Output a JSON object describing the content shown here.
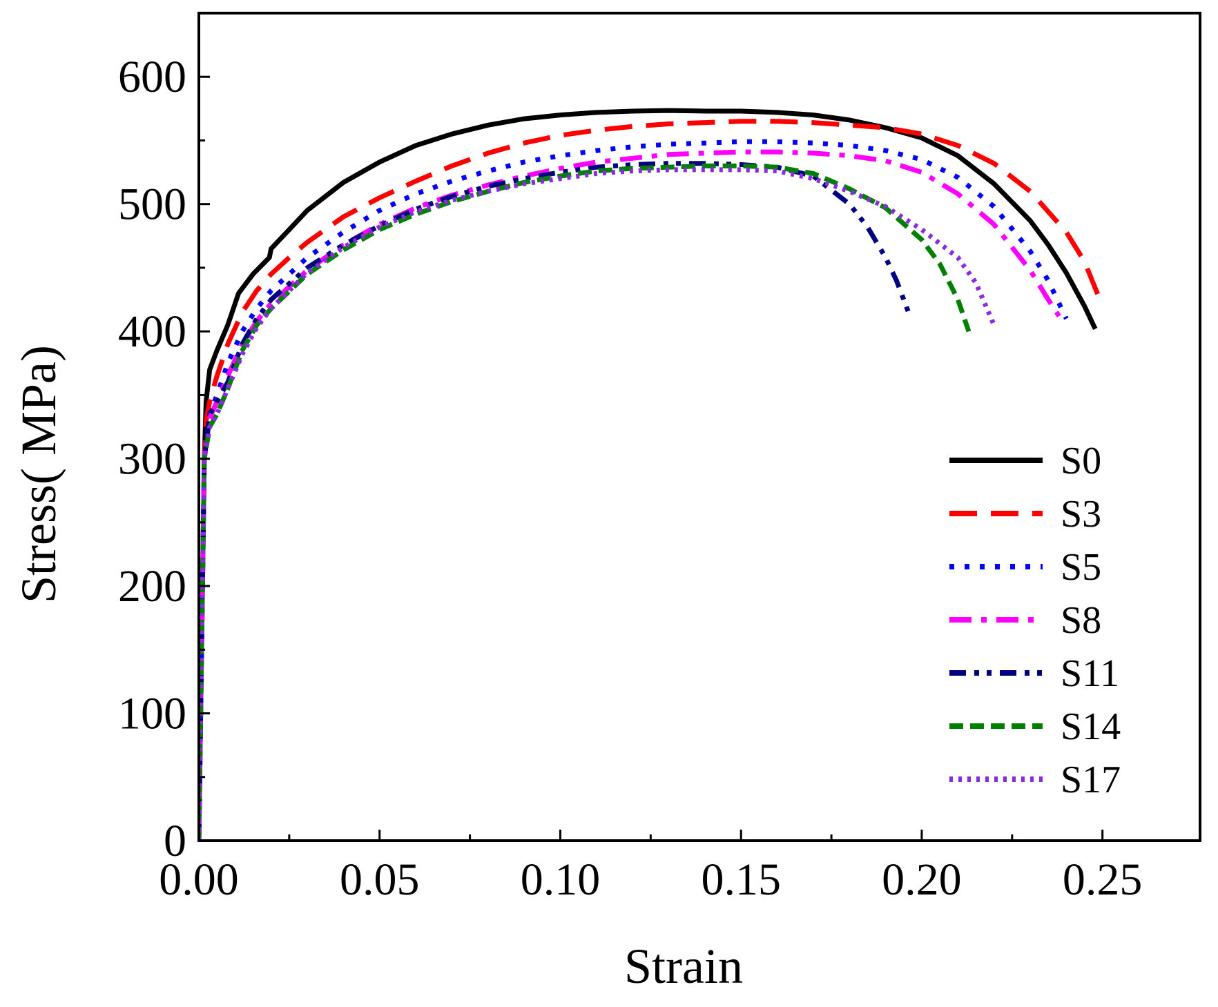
{
  "chart_data": {
    "type": "line",
    "title": "",
    "xlabel": "Strain",
    "ylabel": "Stress( MPa)",
    "xlim": [
      0,
      0.277
    ],
    "ylim": [
      0,
      650
    ],
    "xticks": [
      0.0,
      0.05,
      0.1,
      0.15,
      0.2,
      0.25
    ],
    "xtick_labels": [
      "0.00",
      "0.05",
      "0.10",
      "0.15",
      "0.20",
      "0.25"
    ],
    "yticks": [
      0,
      100,
      200,
      300,
      400,
      500,
      600
    ],
    "ytick_labels": [
      "0",
      "100",
      "200",
      "300",
      "400",
      "500",
      "600"
    ],
    "legend_position": "bottom-right",
    "grid": false,
    "series": [
      {
        "name": "S0",
        "color": "#000000",
        "dash": "solid",
        "x": [
          0,
          0.0015,
          0.002,
          0.003,
          0.005,
          0.008,
          0.011,
          0.015,
          0.0195,
          0.02,
          0.025,
          0.03,
          0.04,
          0.05,
          0.06,
          0.07,
          0.08,
          0.09,
          0.1,
          0.11,
          0.12,
          0.13,
          0.14,
          0.15,
          0.16,
          0.17,
          0.18,
          0.19,
          0.2,
          0.21,
          0.22,
          0.23,
          0.235,
          0.24,
          0.245,
          0.248
        ],
        "y": [
          0,
          300,
          345,
          370,
          385,
          405,
          430,
          445,
          458,
          465,
          480,
          495,
          517,
          533,
          546,
          555,
          562,
          567,
          570,
          572,
          573,
          573.5,
          573,
          573,
          572,
          570,
          566,
          560,
          552,
          538,
          516,
          487,
          468,
          446,
          420,
          402
        ]
      },
      {
        "name": "S3",
        "color": "#ff0000",
        "dash": "long-dash",
        "x": [
          0,
          0.0015,
          0.002,
          0.003,
          0.005,
          0.008,
          0.012,
          0.016,
          0.02,
          0.025,
          0.03,
          0.04,
          0.05,
          0.06,
          0.07,
          0.08,
          0.09,
          0.1,
          0.11,
          0.12,
          0.13,
          0.14,
          0.15,
          0.16,
          0.17,
          0.18,
          0.19,
          0.2,
          0.21,
          0.22,
          0.23,
          0.24,
          0.245,
          0.25
        ],
        "y": [
          0,
          300,
          330,
          345,
          365,
          390,
          415,
          432,
          445,
          458,
          470,
          490,
          505,
          518,
          530,
          540,
          548,
          554,
          558,
          561,
          563,
          564,
          565,
          565,
          564,
          562,
          560,
          555,
          546,
          532,
          510,
          478,
          455,
          420
        ]
      },
      {
        "name": "S5",
        "color": "#0000ff",
        "dash": "dot",
        "x": [
          0,
          0.0015,
          0.003,
          0.005,
          0.008,
          0.012,
          0.016,
          0.02,
          0.03,
          0.04,
          0.05,
          0.06,
          0.07,
          0.08,
          0.09,
          0.1,
          0.11,
          0.12,
          0.13,
          0.14,
          0.15,
          0.16,
          0.17,
          0.18,
          0.19,
          0.2,
          0.21,
          0.22,
          0.23,
          0.235,
          0.24
        ],
        "y": [
          0,
          300,
          335,
          350,
          375,
          400,
          418,
          432,
          458,
          478,
          495,
          508,
          518,
          526,
          533,
          538,
          542,
          545,
          547,
          548,
          549,
          549,
          548,
          546,
          542,
          535,
          521,
          498,
          463,
          440,
          410
        ]
      },
      {
        "name": "S8",
        "color": "#ff00ff",
        "dash": "dash-dot",
        "x": [
          0,
          0.0015,
          0.003,
          0.005,
          0.008,
          0.012,
          0.016,
          0.02,
          0.03,
          0.04,
          0.05,
          0.06,
          0.07,
          0.08,
          0.09,
          0.1,
          0.11,
          0.12,
          0.13,
          0.14,
          0.15,
          0.16,
          0.17,
          0.18,
          0.19,
          0.2,
          0.21,
          0.22,
          0.23,
          0.235,
          0.238
        ],
        "y": [
          0,
          300,
          332,
          345,
          365,
          390,
          408,
          422,
          448,
          468,
          484,
          497,
          507,
          515,
          522,
          528,
          533,
          536,
          539,
          540,
          541,
          541,
          540,
          538,
          534,
          525,
          508,
          484,
          448,
          425,
          412
        ]
      },
      {
        "name": "S11",
        "color": "#000080",
        "dash": "dash-dot-dot",
        "x": [
          0,
          0.0015,
          0.003,
          0.005,
          0.008,
          0.012,
          0.016,
          0.02,
          0.03,
          0.04,
          0.05,
          0.06,
          0.07,
          0.08,
          0.09,
          0.1,
          0.11,
          0.12,
          0.13,
          0.14,
          0.15,
          0.16,
          0.17,
          0.18,
          0.185,
          0.19,
          0.193,
          0.195,
          0.197
        ],
        "y": [
          0,
          300,
          335,
          345,
          360,
          390,
          410,
          425,
          450,
          468,
          483,
          496,
          506,
          514,
          520,
          525,
          529,
          531,
          532,
          532,
          531,
          529,
          522,
          500,
          482,
          458,
          440,
          425,
          410
        ]
      },
      {
        "name": "S14",
        "color": "#008000",
        "dash": "short-dash",
        "x": [
          0,
          0.0015,
          0.003,
          0.005,
          0.008,
          0.012,
          0.016,
          0.02,
          0.03,
          0.04,
          0.05,
          0.06,
          0.07,
          0.08,
          0.09,
          0.1,
          0.11,
          0.12,
          0.13,
          0.14,
          0.15,
          0.16,
          0.17,
          0.18,
          0.19,
          0.2,
          0.205,
          0.21,
          0.213
        ],
        "y": [
          0,
          300,
          325,
          335,
          355,
          385,
          405,
          418,
          445,
          464,
          480,
          492,
          502,
          510,
          517,
          522,
          526,
          528,
          529,
          530,
          530,
          529,
          524,
          512,
          497,
          472,
          453,
          425,
          400
        ]
      },
      {
        "name": "S17",
        "color": "#8a2be2",
        "dash": "fine-dot",
        "x": [
          0,
          0.0015,
          0.003,
          0.005,
          0.008,
          0.012,
          0.016,
          0.02,
          0.03,
          0.04,
          0.05,
          0.06,
          0.07,
          0.08,
          0.09,
          0.1,
          0.11,
          0.12,
          0.13,
          0.14,
          0.15,
          0.16,
          0.17,
          0.18,
          0.19,
          0.2,
          0.21,
          0.215,
          0.22
        ],
        "y": [
          0,
          300,
          325,
          335,
          355,
          382,
          403,
          418,
          446,
          466,
          482,
          494,
          503,
          510,
          516,
          520,
          524,
          526,
          527,
          527,
          527,
          526,
          520,
          510,
          498,
          480,
          458,
          438,
          405
        ]
      }
    ]
  }
}
